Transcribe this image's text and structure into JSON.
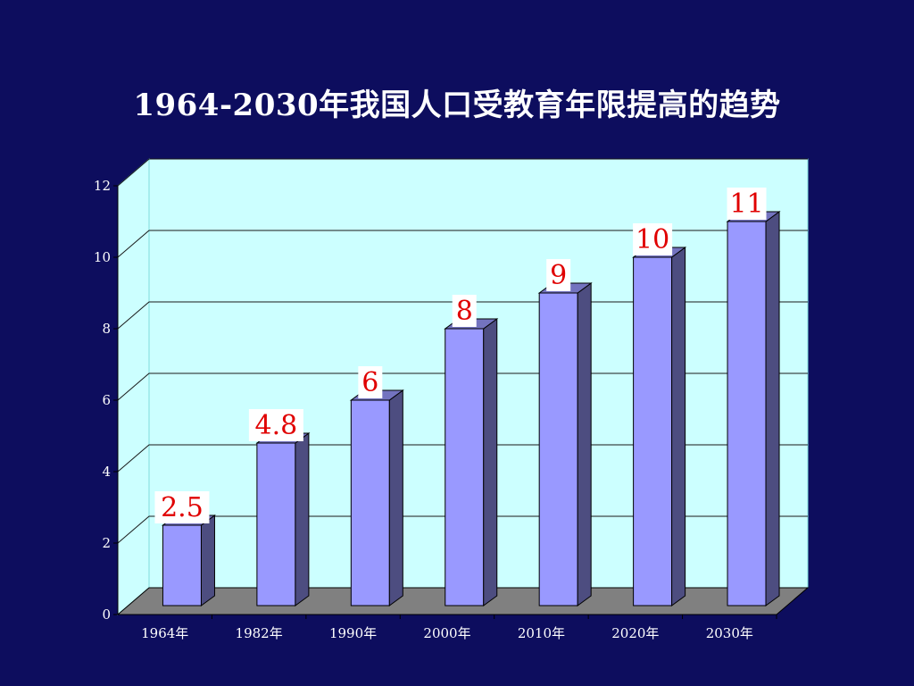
{
  "slide": {
    "title": "1964-2030年我国人口受教育年限提高的趋势"
  },
  "chart_data": {
    "type": "bar",
    "title": "1964-2030年我国人口受教育年限提高的趋势",
    "xlabel": "",
    "ylabel": "",
    "categories": [
      "1964年",
      "1982年",
      "1990年",
      "2000年",
      "2010年",
      "2020年",
      "2030年"
    ],
    "values": [
      2.5,
      4.8,
      6,
      8,
      9,
      10,
      11
    ],
    "data_labels": [
      "2.5",
      "4.8",
      "6",
      "8",
      "9",
      "10",
      "11"
    ],
    "ylim": [
      0,
      12
    ],
    "yticks": [
      0,
      2,
      4,
      6,
      8,
      10,
      12
    ],
    "grid": true,
    "legend": "none",
    "style": "3d",
    "colors": {
      "background": "#0d0d5e",
      "wall": "#ccffff",
      "floor": "#808080",
      "bar_front": "#9999ff",
      "bar_side": "#4d4d80",
      "bar_top": "#7373bf",
      "data_label": "#e00000"
    }
  }
}
